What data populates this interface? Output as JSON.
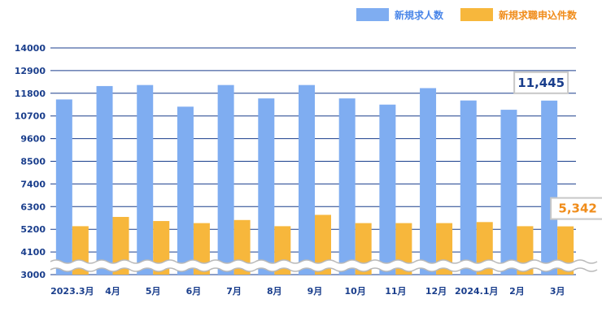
{
  "colors": {
    "series_blue": "#7fadf1",
    "series_orange": "#f7b73c",
    "axis_text": "#1a3e8c",
    "grid": "#1a3e8c",
    "legend_blue_text": "#4a86e8",
    "legend_orange_text": "#f08c1a"
  },
  "chart_data": {
    "type": "bar",
    "categories": [
      "2023.3月",
      "4月",
      "5月",
      "6月",
      "7月",
      "8月",
      "9月",
      "10月",
      "11月",
      "12月",
      "2024.1月",
      "2月",
      "3月"
    ],
    "series": [
      {
        "name": "新規求人数",
        "values": [
          11500,
          12150,
          12200,
          11150,
          12200,
          11550,
          12200,
          11550,
          11250,
          12050,
          11450,
          11000,
          11445
        ]
      },
      {
        "name": "新規求職申込件数",
        "values": [
          5350,
          5800,
          5600,
          5500,
          5650,
          5350,
          5900,
          5500,
          5500,
          5500,
          5550,
          5350,
          5342
        ]
      }
    ],
    "yticks": [
      "14000",
      "12900",
      "11800",
      "10700",
      "9600",
      "8500",
      "7400",
      "6300",
      "5200",
      "4100",
      "3000"
    ],
    "ylim": [
      3000,
      14000
    ],
    "grid": true,
    "axis_break": true,
    "legend_position": "top-right",
    "annotations": [
      {
        "label": "11,445",
        "series": 0,
        "category_index": 12
      },
      {
        "label": "5,342",
        "series": 1,
        "category_index": 12
      }
    ]
  }
}
